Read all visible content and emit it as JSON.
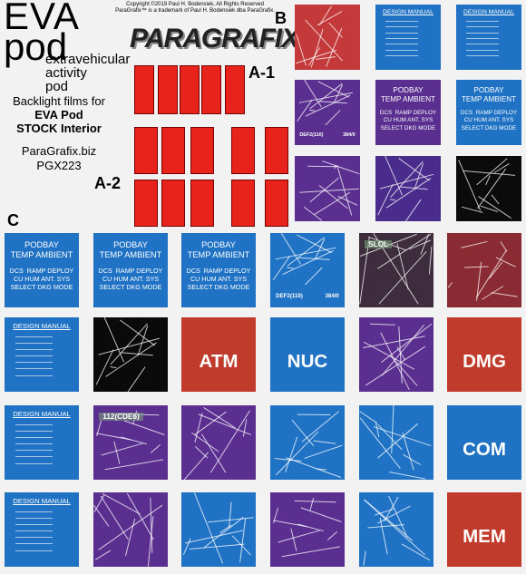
{
  "header": {
    "title": "EVA",
    "title2": "pod",
    "subtitle": [
      "extravehicular",
      "activity",
      "pod"
    ],
    "copyright": [
      "Copyright ©2019 Paul H. Bodensiek, All Rights Reserved",
      "ParaGrafix™ is a trademark of Paul H. Bodensiek dba ParaGrafix."
    ],
    "logo": "PARAGRAFIX"
  },
  "description": {
    "lines": [
      "Backlight films for",
      "EVA Pod",
      "STOCK Interior"
    ],
    "website": "ParaGrafix.biz",
    "code": "PGX223"
  },
  "section_labels": {
    "a1": "A-1",
    "a2": "A-2",
    "b": "B",
    "c": "C"
  },
  "grid_b": {
    "tiles": [
      {
        "kind": "graphic",
        "color": "#c4393a"
      },
      {
        "kind": "menu",
        "color": "#1f72c4",
        "heading": "DESIGN MANUAL"
      },
      {
        "kind": "menu",
        "color": "#1f72c4",
        "heading": "DESIGN MANUAL"
      },
      {
        "kind": "readout",
        "color": "#5a2f90",
        "lines": [
          "DEF2(110)",
          "384/0"
        ]
      },
      {
        "kind": "podbay",
        "color": "#5a2f90",
        "heading": [
          "PODBAY",
          "TEMP AMBIENT"
        ],
        "lines": [
          "DCS  RAMP DEPLOY",
          "CU HUM ANT. SYS",
          "SELECT DKG MODE"
        ]
      },
      {
        "kind": "podbay",
        "color": "#1f72c4",
        "heading": [
          "PODBAY",
          "TEMP AMBIENT"
        ],
        "lines": [
          "DCS  RAMP DEPLOY",
          "CU HUM ANT. SYS",
          "SELECT DKG MODE"
        ]
      },
      {
        "kind": "graphic",
        "color": "#5a2f90"
      },
      {
        "kind": "graphic",
        "color": "#4a2c8c"
      },
      {
        "kind": "graphic",
        "color": "#0b0b0b"
      }
    ]
  },
  "grid_c": {
    "tiles": [
      {
        "kind": "podbay",
        "color": "#1f72c4",
        "heading": [
          "PODBAY",
          "TEMP AMBIENT"
        ],
        "lines": [
          "DCS  RAMP DEPLOY",
          "CU HUM ANT. SYS",
          "SELECT DKG MODE"
        ]
      },
      {
        "kind": "podbay",
        "color": "#1f72c4",
        "heading": [
          "PODBAY",
          "TEMP AMBIENT"
        ],
        "lines": [
          "DCS  RAMP DEPLOY",
          "CU HUM ANT. SYS",
          "SELECT DKG MODE"
        ]
      },
      {
        "kind": "podbay",
        "color": "#1f72c4",
        "heading": [
          "PODBAY",
          "TEMP AMBIENT"
        ],
        "lines": [
          "DCS  RAMP DEPLOY",
          "CU HUM ANT. SYS",
          "SELECT DKG MODE"
        ]
      },
      {
        "kind": "readout",
        "color": "#1f72c4",
        "lines": [
          "DEF2(110)",
          "384/0"
        ]
      },
      {
        "kind": "tag",
        "color": "#3d2d3d",
        "tag": "SLOL"
      },
      {
        "kind": "graphic",
        "color": "#8a2a32"
      },
      {
        "kind": "menu",
        "color": "#1f72c4",
        "heading": "DESIGN MANUAL"
      },
      {
        "kind": "graphic",
        "color": "#0a0a0a"
      },
      {
        "kind": "word",
        "color": "#c13b2c",
        "word": "ATM"
      },
      {
        "kind": "word",
        "color": "#1f72c4",
        "word": "NUC"
      },
      {
        "kind": "graphic",
        "color": "#5a2f90"
      },
      {
        "kind": "word",
        "color": "#c13b2c",
        "word": "DMG"
      },
      {
        "kind": "menu",
        "color": "#1f72c4",
        "heading": "DESIGN MANUAL"
      },
      {
        "kind": "tag",
        "color": "#5a2f90",
        "tag": "112(CDE6)"
      },
      {
        "kind": "graphic",
        "color": "#5a2f90"
      },
      {
        "kind": "graphic",
        "color": "#1f72c4"
      },
      {
        "kind": "graphic",
        "color": "#1f72c4"
      },
      {
        "kind": "word",
        "color": "#1f72c4",
        "word": "COM"
      },
      {
        "kind": "menu",
        "color": "#1f72c4",
        "heading": "DESIGN MANUAL"
      },
      {
        "kind": "graphic",
        "color": "#5a2f90"
      },
      {
        "kind": "graphic",
        "color": "#1f72c4"
      },
      {
        "kind": "graphic",
        "color": "#5a2f90"
      },
      {
        "kind": "graphic",
        "color": "#1f72c4"
      },
      {
        "kind": "word",
        "color": "#c13b2c",
        "word": "MEM"
      }
    ]
  }
}
